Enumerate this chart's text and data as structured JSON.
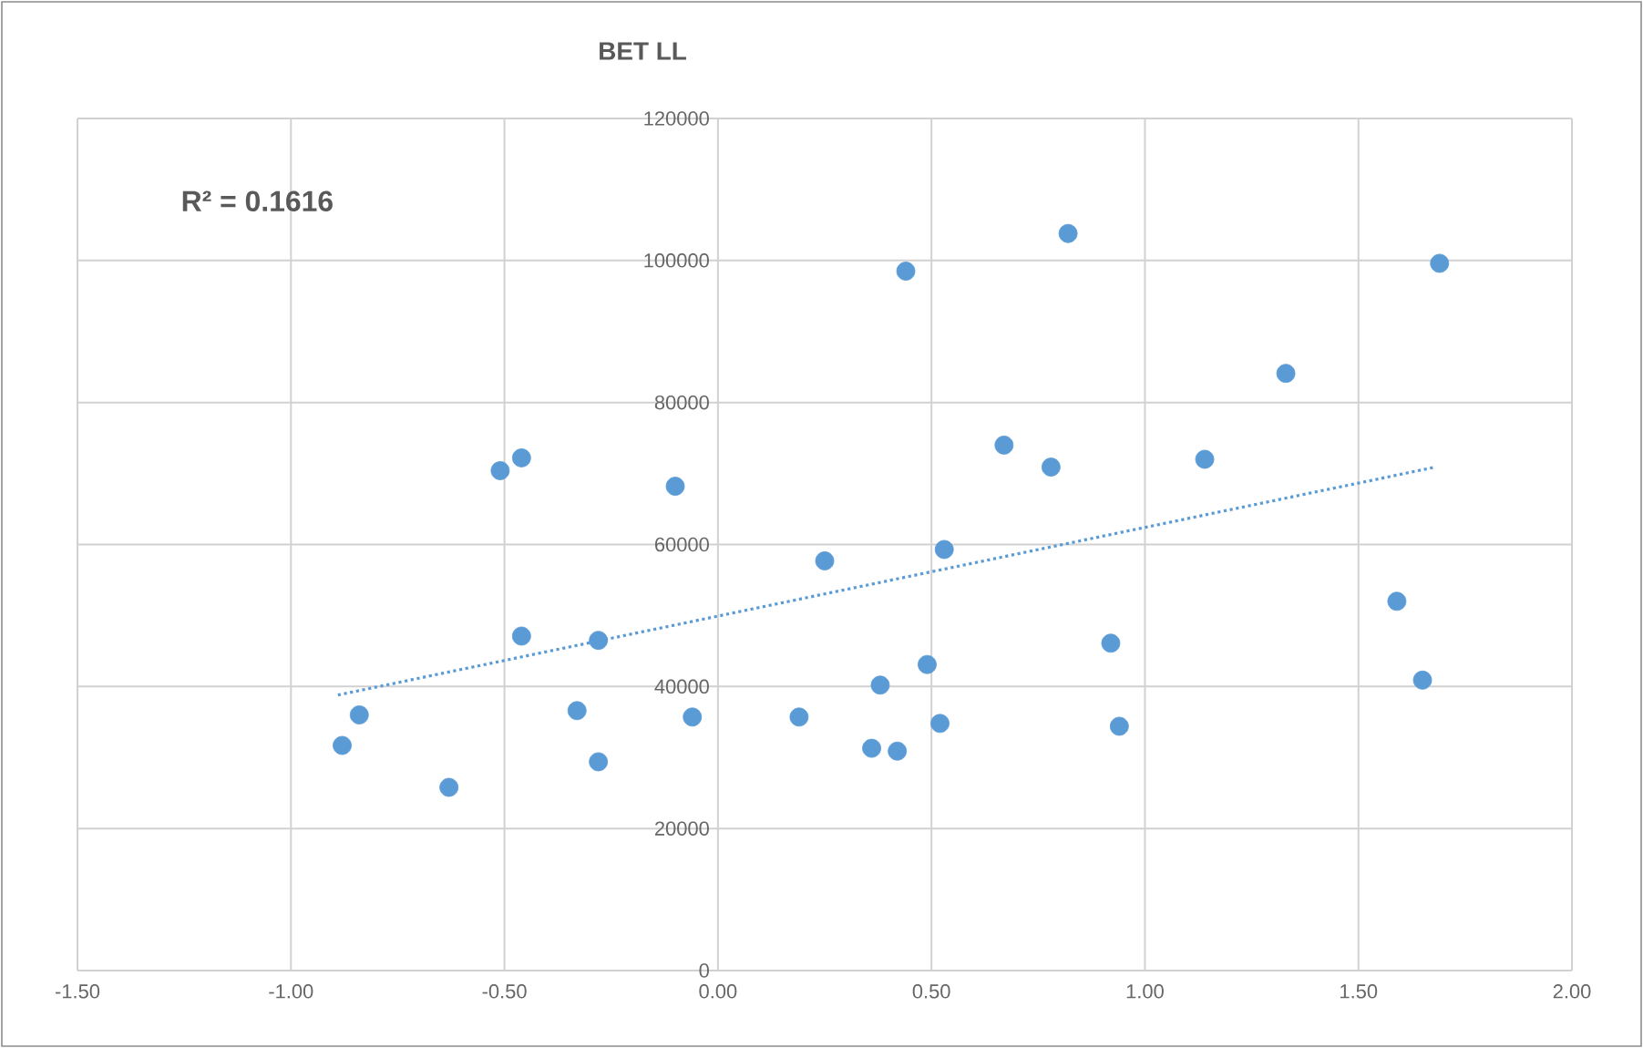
{
  "chart_data": {
    "type": "scatter",
    "title": "BET LL",
    "xlim": [
      -1.5,
      2.0
    ],
    "xticks": [
      {
        "value": -1.5,
        "label": "-1.50"
      },
      {
        "value": -1.0,
        "label": "-1.00"
      },
      {
        "value": -0.5,
        "label": "-0.50"
      },
      {
        "value": 0,
        "label": "0.00"
      },
      {
        "value": 0.5,
        "label": "0.50"
      },
      {
        "value": 1.0,
        "label": "1.00"
      },
      {
        "value": 1.5,
        "label": "1.50"
      },
      {
        "value": 2.0,
        "label": "2.00"
      }
    ],
    "ylim": [
      0,
      120000
    ],
    "yticks": [
      0,
      20000,
      40000,
      60000,
      80000,
      100000,
      120000
    ],
    "grid": true,
    "marker": "circle",
    "annotations": [
      "R² = 0.1616"
    ],
    "series": [
      {
        "type": "scatter",
        "color": "#5b9bd5",
        "x": [
          -0.88,
          -0.84,
          -0.63,
          -0.51,
          -0.46,
          -0.46,
          -0.33,
          -0.28,
          -0.28,
          -0.1,
          -0.06,
          0.19,
          0.25,
          0.36,
          0.38,
          0.42,
          0.44,
          0.49,
          0.52,
          0.53,
          0.67,
          0.78,
          0.82,
          0.92,
          0.94,
          1.14,
          1.33,
          1.59,
          1.65,
          1.69
        ],
        "values": [
          31700,
          36000,
          25800,
          70400,
          72200,
          47100,
          36600,
          46500,
          29400,
          68200,
          35700,
          35700,
          57700,
          31300,
          40200,
          30900,
          98500,
          43100,
          34800,
          59300,
          74000,
          70900,
          103800,
          46100,
          34400,
          72000,
          84100,
          52000,
          40900,
          99600
        ]
      },
      {
        "type": "line",
        "color": "#5b9bd5",
        "marker": "none",
        "line_style": "dotted",
        "x": [
          -0.89,
          1.68
        ],
        "values": [
          38800,
          70900
        ]
      }
    ]
  }
}
